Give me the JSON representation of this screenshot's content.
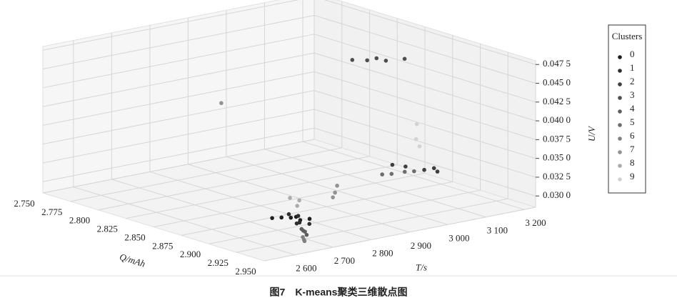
{
  "chart_data": {
    "type": "scatter3d",
    "caption": "图7　K-means聚类三维散点图",
    "xlabel": "Q/mAh",
    "ylabel": "T/s",
    "zlabel": "U/V",
    "xlim": [
      2.75,
      2.95
    ],
    "ylim": [
      2520,
      3230
    ],
    "zlim": [
      0.0285,
      0.048
    ],
    "xticks": [
      {
        "value": 2.75,
        "label": "2.750"
      },
      {
        "value": 2.775,
        "label": "2.775"
      },
      {
        "value": 2.8,
        "label": "2.800"
      },
      {
        "value": 2.825,
        "label": "2.825"
      },
      {
        "value": 2.85,
        "label": "2.850"
      },
      {
        "value": 2.875,
        "label": "2.875"
      },
      {
        "value": 2.9,
        "label": "2.900"
      },
      {
        "value": 2.925,
        "label": "2.925"
      },
      {
        "value": 2.95,
        "label": "2.950"
      }
    ],
    "yticks": [
      {
        "value": 2600,
        "label": "2 600"
      },
      {
        "value": 2700,
        "label": "2 700"
      },
      {
        "value": 2800,
        "label": "2 800"
      },
      {
        "value": 2900,
        "label": "2 900"
      },
      {
        "value": 3000,
        "label": "3 000"
      },
      {
        "value": 3100,
        "label": "3 100"
      },
      {
        "value": 3200,
        "label": "3 200"
      }
    ],
    "zticks": [
      {
        "value": 0.03,
        "label": "0.030 0"
      },
      {
        "value": 0.0325,
        "label": "0.032 5"
      },
      {
        "value": 0.035,
        "label": "0.035 0"
      },
      {
        "value": 0.0375,
        "label": "0.037 5"
      },
      {
        "value": 0.04,
        "label": "0.040 0"
      },
      {
        "value": 0.0425,
        "label": "0.042 5"
      },
      {
        "value": 0.045,
        "label": "0.045 0"
      },
      {
        "value": 0.0475,
        "label": "0.047 5"
      }
    ],
    "grid": true,
    "legend_title": "Clusters",
    "legend": "right",
    "series": [
      {
        "name": "0",
        "color": "#1e1e1e",
        "x": [
          2.905,
          2.91,
          2.9,
          2.915,
          2.895,
          2.908
        ],
        "y": [
          2720,
          2730,
          2710,
          2740,
          2700,
          2725
        ],
        "z": [
          0.0302,
          0.03,
          0.0301,
          0.0303,
          0.0299,
          0.0304
        ]
      },
      {
        "name": "1",
        "color": "#2e2e2e",
        "x": [
          2.912,
          2.898,
          2.92,
          2.903,
          2.918
        ],
        "y": [
          2715,
          2735,
          2725,
          2745,
          2705
        ],
        "z": [
          0.0298,
          0.0302,
          0.03,
          0.0301,
          0.0303
        ]
      },
      {
        "name": "2",
        "color": "#3e3e3e",
        "x": [
          2.905,
          2.915,
          2.9,
          2.92,
          2.91
        ],
        "y": [
          3020,
          3040,
          3000,
          3060,
          3080
        ],
        "z": [
          0.034,
          0.0338,
          0.0342,
          0.0336,
          0.0334
        ]
      },
      {
        "name": "3",
        "color": "#4e4e4e",
        "x": [
          2.865,
          2.87,
          2.86,
          2.88,
          2.85
        ],
        "y": [
          3060,
          3070,
          3050,
          3090,
          3040
        ],
        "z": [
          0.0462,
          0.046,
          0.0458,
          0.0465,
          0.0455
        ]
      },
      {
        "name": "4",
        "color": "#5e5e5e",
        "x": [
          2.93,
          2.935,
          2.925,
          2.94
        ],
        "y": [
          2680,
          2670,
          2690,
          2660
        ],
        "z": [
          0.03,
          0.0302,
          0.0299,
          0.0301
        ]
      },
      {
        "name": "5",
        "color": "#6e6e6e",
        "x": [
          2.92,
          2.925,
          2.915,
          2.93
        ],
        "y": [
          2940,
          2960,
          2930,
          2970
        ],
        "z": [
          0.0345,
          0.0348,
          0.0343,
          0.035
        ]
      },
      {
        "name": "6",
        "color": "#808080",
        "x": [
          2.945,
          2.94,
          2.948
        ],
        "y": [
          2640,
          2650,
          2630
        ],
        "z": [
          0.0297,
          0.0299,
          0.0301
        ]
      },
      {
        "name": "7",
        "color": "#929292",
        "x": [
          2.9,
          2.895,
          2.905,
          2.78
        ],
        "y": [
          2850,
          2870,
          2830,
          2900
        ],
        "z": [
          0.032,
          0.0325,
          0.0318,
          0.038
        ]
      },
      {
        "name": "8",
        "color": "#aaaaaa",
        "x": [
          2.89,
          2.885,
          2.88
        ],
        "y": [
          2780,
          2800,
          2790
        ],
        "z": [
          0.0305,
          0.0308,
          0.031
        ]
      },
      {
        "name": "9",
        "color": "#d2d2d2",
        "x": [
          2.89,
          2.88,
          2.86
        ],
        "y": [
          3100,
          3120,
          3180
        ],
        "z": [
          0.0352,
          0.0355,
          0.036
        ]
      }
    ]
  }
}
